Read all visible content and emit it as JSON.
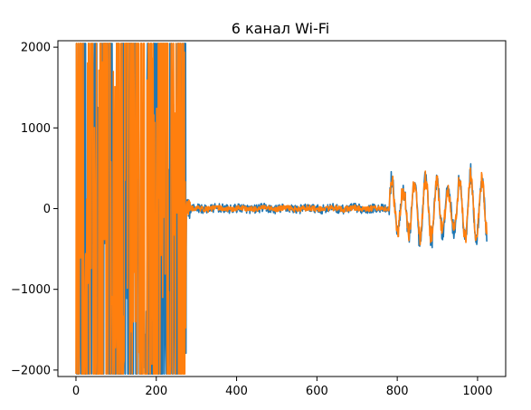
{
  "chart_data": {
    "type": "line",
    "title": "6 канал Wi-Fi",
    "xlabel": "",
    "ylabel": "",
    "xlim": [
      -45,
      1070
    ],
    "ylim": [
      -2080,
      2080
    ],
    "x_ticks": [
      0,
      200,
      400,
      600,
      800,
      1000
    ],
    "y_ticks": [
      -2000,
      -1000,
      0,
      1000,
      2000
    ],
    "x_tick_labels": [
      "0",
      "200",
      "400",
      "600",
      "800",
      "1000"
    ],
    "y_tick_labels": [
      "−2000",
      "−1000",
      "0",
      "1000",
      "2000"
    ],
    "grid": false,
    "legend": "none",
    "n_points": 1024,
    "series": [
      {
        "color": "#1f77b4",
        "description_values": "samples 0–275 saturated swings between -2048 and 2047; 275–780 near 0 (±60); 780–1024 oscillating roughly ±500"
      },
      {
        "color": "#ff7f0e",
        "description_values": "samples 0–275 saturated swings between -2048 and 2047; 275–780 near 0 (±40); 780–1024 oscillating roughly ±450"
      }
    ]
  }
}
